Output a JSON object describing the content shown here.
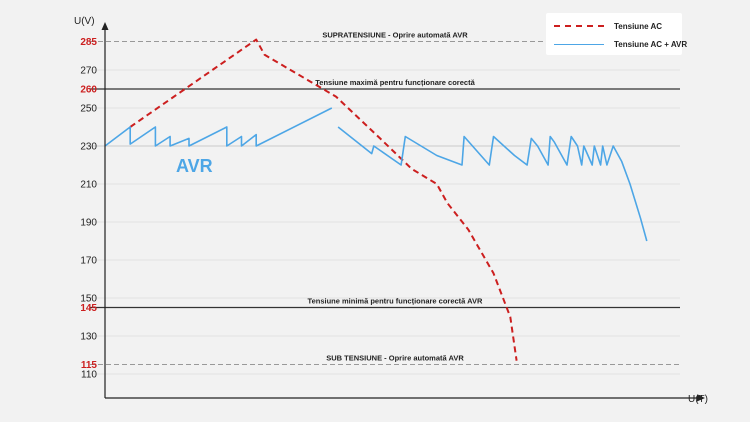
{
  "chart_data": {
    "type": "line",
    "xlabel": "U(T)",
    "ylabel": "U(V)",
    "ylim": [
      103,
      300
    ],
    "y_ticks": [
      110,
      130,
      150,
      170,
      190,
      210,
      230,
      250,
      270
    ],
    "y_ticks_red": [
      115,
      145,
      260,
      285
    ],
    "reference_lines": [
      {
        "value": 285,
        "label": "SUPRATENSIUNE - Oprire automată AVR",
        "style": "dashed"
      },
      {
        "value": 260,
        "label": "Tensiune maximă pentru funcționare corectă",
        "style": "solid"
      },
      {
        "value": 230,
        "label": "",
        "style": "thin"
      },
      {
        "value": 145,
        "label": "Tensiune minimă pentru funcționare corectă AVR",
        "style": "solid"
      },
      {
        "value": 115,
        "label": "SUB TENSIUNE - Oprire automată AVR",
        "style": "dashed"
      }
    ],
    "annotation": "AVR",
    "series": [
      {
        "name": "Tensiune AC",
        "color": "#cc1f1f",
        "dash": true,
        "points": [
          [
            12,
            240
          ],
          [
            72,
            286
          ],
          [
            76,
            278
          ],
          [
            110,
            256
          ],
          [
            131,
            234
          ],
          [
            146,
            218
          ],
          [
            158,
            210
          ],
          [
            163,
            200
          ],
          [
            173,
            186
          ],
          [
            185,
            163
          ],
          [
            193,
            140
          ],
          [
            196,
            117
          ]
        ]
      },
      {
        "name": "Tensiune AC + AVR",
        "color": "#4da6e6",
        "dash": false,
        "segments": [
          [
            [
              0,
              230
            ],
            [
              12,
              240
            ],
            [
              12,
              231
            ],
            [
              24,
              240
            ],
            [
              24,
              230
            ],
            [
              31,
              235
            ],
            [
              31,
              230
            ],
            [
              40,
              234
            ],
            [
              40,
              230
            ],
            [
              58,
              240
            ],
            [
              58,
              230
            ],
            [
              65,
              235
            ],
            [
              65,
              230
            ],
            [
              72,
              236
            ],
            [
              72,
              230
            ],
            [
              108,
              250
            ]
          ],
          [
            [
              111,
              240
            ],
            [
              127,
              226
            ],
            [
              128,
              230
            ],
            [
              141,
              220
            ],
            [
              143,
              235
            ],
            [
              158,
              225
            ],
            [
              170,
              220
            ],
            [
              171,
              235
            ],
            [
              183,
              220
            ],
            [
              185,
              235
            ],
            [
              195,
              225
            ],
            [
              201,
              220
            ],
            [
              203,
              234
            ],
            [
              206,
              230
            ],
            [
              211,
              220
            ],
            [
              212,
              235
            ],
            [
              214,
              232
            ],
            [
              220,
              220
            ],
            [
              222,
              235
            ],
            [
              225,
              230
            ],
            [
              227,
              220
            ],
            [
              228,
              230
            ],
            [
              232,
              220
            ],
            [
              233,
              230
            ],
            [
              236,
              220
            ],
            [
              237,
              230
            ],
            [
              239,
              220
            ],
            [
              242,
              230
            ],
            [
              246,
              222
            ],
            [
              250,
              210
            ],
            [
              255,
              192
            ],
            [
              258,
              180
            ]
          ]
        ]
      }
    ]
  }
}
